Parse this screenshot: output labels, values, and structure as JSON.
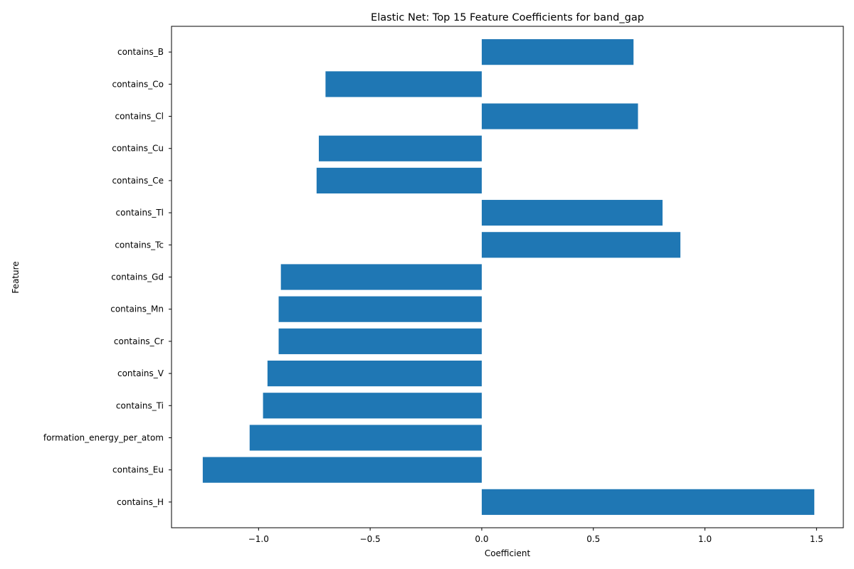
{
  "chart_data": {
    "type": "bar",
    "orientation": "horizontal",
    "title": "Elastic Net: Top 15 Feature Coefficients for band_gap",
    "xlabel": "Coefficient",
    "ylabel": "Feature",
    "xlim": [
      -1.39,
      1.62
    ],
    "xticks": [
      -1.0,
      -0.5,
      0.0,
      0.5,
      1.0,
      1.5
    ],
    "xtick_labels": [
      "−1.0",
      "−0.5",
      "0.0",
      "0.5",
      "1.0",
      "1.5"
    ],
    "grid": false,
    "bar_color": "#1f77b4",
    "categories": [
      "contains_H",
      "contains_Eu",
      "formation_energy_per_atom",
      "contains_Ti",
      "contains_V",
      "contains_Cr",
      "contains_Mn",
      "contains_Gd",
      "contains_Tc",
      "contains_Tl",
      "contains_Ce",
      "contains_Cu",
      "contains_Cl",
      "contains_Co",
      "contains_B"
    ],
    "values": [
      1.49,
      -1.25,
      -1.04,
      -0.98,
      -0.96,
      -0.91,
      -0.91,
      -0.9,
      0.89,
      0.81,
      -0.74,
      -0.73,
      0.7,
      -0.7,
      0.68
    ]
  }
}
